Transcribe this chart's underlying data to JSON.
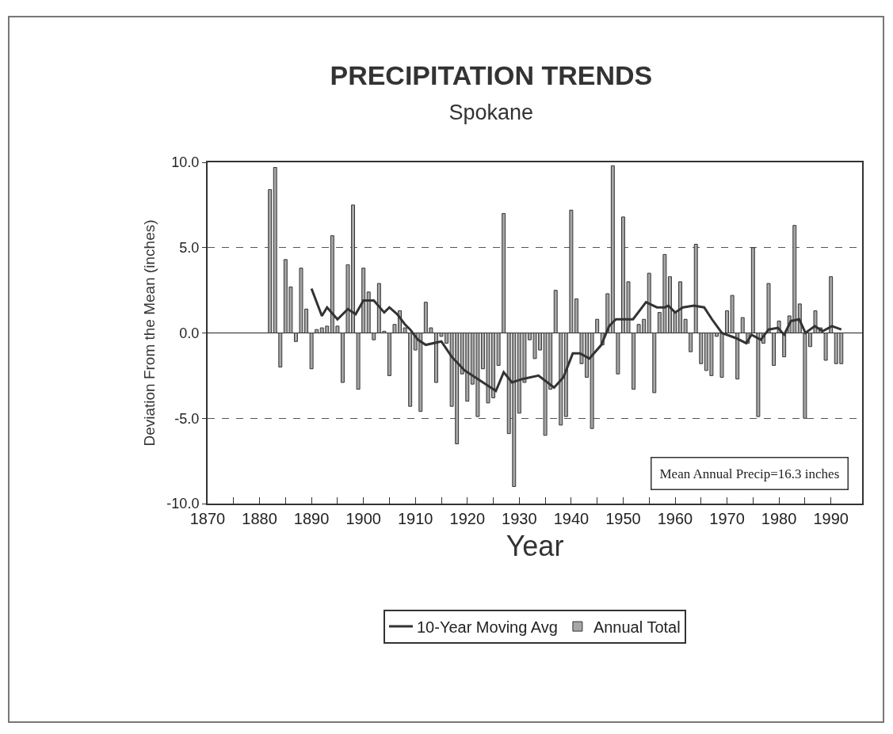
{
  "chart_data": {
    "type": "bar",
    "title": "PRECIPITATION TRENDS",
    "subtitle": "Spokane",
    "xlabel": "Year",
    "ylabel": "Deviation From the Mean (inches)",
    "xlim": [
      1870,
      1996
    ],
    "xticks": [
      1870,
      {
        "value": 1875,
        "label": null
      },
      1880,
      {
        "value": 1885,
        "label": null
      },
      1890,
      {
        "value": 1895,
        "label": null
      },
      1900,
      {
        "value": 1905,
        "label": null
      },
      1910,
      {
        "value": 1915,
        "label": null
      },
      1920,
      {
        "value": 1925,
        "label": null
      },
      1930,
      {
        "value": 1935,
        "label": null
      },
      1940,
      {
        "value": 1945,
        "label": null
      },
      1950,
      {
        "value": 1955,
        "label": null
      },
      1960,
      {
        "value": 1965,
        "label": null
      },
      1970,
      {
        "value": 1975,
        "label": null
      },
      1980,
      {
        "value": 1985,
        "label": null
      },
      1990
    ],
    "ylim": [
      -10,
      10
    ],
    "yticks": [
      {
        "value": -10,
        "label": "-10.0"
      },
      {
        "value": -5,
        "label": "-5.0"
      },
      {
        "value": 0,
        "label": "0.0"
      },
      {
        "value": 5,
        "label": "5.0"
      },
      {
        "value": 10,
        "label": "10.0"
      }
    ],
    "grid": "y",
    "legend": "bottom",
    "annotations": [
      "Mean Annual Precip=16.3 inches"
    ],
    "series": [
      {
        "name": "10-Year Moving Avg",
        "type": "line",
        "color": "#333333",
        "line_style": "solid",
        "marker": "none",
        "x": [
          1890,
          1892,
          1893,
          1895,
          1897,
          1898.5,
          1900,
          1902,
          1904,
          1905,
          1906.5,
          1908,
          1909,
          1910.5,
          1912,
          1915,
          1917,
          1919.5,
          1922.5,
          1925.5,
          1927,
          1928.6,
          1930.6,
          1933.7,
          1936.7,
          1938.5,
          1940.3,
          1941.7,
          1943.5,
          1945.8,
          1947.3,
          1948.6,
          1951.9,
          1954.4,
          1956.5,
          1958,
          1958.7,
          1960,
          1961.5,
          1963.6,
          1965.6,
          1967.1,
          1969,
          1971.7,
          1973.7,
          1974.7,
          1976.5,
          1978,
          1979.8,
          1981,
          1982.3,
          1983.9,
          1985.1,
          1986.9,
          1988.4,
          1990.2,
          1992
        ],
        "values": [
          2.6,
          1.0,
          1.5,
          0.8,
          1.4,
          1.1,
          1.9,
          1.9,
          1.2,
          1.5,
          1.1,
          0.5,
          0.2,
          -0.4,
          -0.7,
          -0.5,
          -1.4,
          -2.2,
          -2.8,
          -3.4,
          -2.3,
          -2.9,
          -2.7,
          -2.5,
          -3.2,
          -2.6,
          -1.2,
          -1.2,
          -1.5,
          -0.7,
          0.4,
          0.8,
          0.8,
          1.8,
          1.5,
          1.5,
          1.6,
          1.2,
          1.5,
          1.6,
          1.5,
          0.8,
          0.0,
          -0.3,
          -0.6,
          -0.1,
          -0.4,
          0.2,
          0.3,
          -0.1,
          0.7,
          0.8,
          0.0,
          0.4,
          0.1,
          0.4,
          0.2
        ]
      },
      {
        "name": "Annual Total",
        "color": "#a6a6a6",
        "x": [
          1882,
          1883,
          1884,
          1885,
          1886,
          1887,
          1888,
          1889,
          1890,
          1891,
          1892,
          1893,
          1894,
          1895,
          1896,
          1897,
          1898,
          1899,
          1900,
          1901,
          1902,
          1903,
          1904,
          1905,
          1906,
          1907,
          1908,
          1909,
          1910,
          1911,
          1912,
          1913,
          1914,
          1915,
          1916,
          1917,
          1918,
          1919,
          1920,
          1921,
          1922,
          1923,
          1924,
          1925,
          1926,
          1927,
          1928,
          1929,
          1930,
          1931,
          1932,
          1933,
          1934,
          1935,
          1936,
          1937,
          1938,
          1939,
          1940,
          1941,
          1942,
          1943,
          1944,
          1945,
          1946,
          1947,
          1948,
          1949,
          1950,
          1951,
          1952,
          1953,
          1954,
          1955,
          1956,
          1957,
          1958,
          1959,
          1960,
          1961,
          1962,
          1963,
          1964,
          1965,
          1966,
          1967,
          1968,
          1969,
          1970,
          1971,
          1972,
          1973,
          1974,
          1975,
          1976,
          1977,
          1978,
          1979,
          1980,
          1981,
          1982,
          1983,
          1984,
          1985,
          1986,
          1987,
          1988,
          1989,
          1990,
          1991,
          1992
        ],
        "values": [
          8.4,
          9.7,
          -2.0,
          4.3,
          2.7,
          -0.5,
          3.8,
          1.4,
          -2.1,
          0.2,
          0.3,
          0.4,
          5.7,
          0.4,
          -2.9,
          4.0,
          7.5,
          -3.3,
          3.8,
          2.4,
          -0.4,
          2.9,
          0.1,
          -2.5,
          0.5,
          1.3,
          0.3,
          -4.3,
          -1.0,
          -4.6,
          1.8,
          0.3,
          -2.9,
          -0.2,
          -0.6,
          -4.3,
          -6.5,
          -2.4,
          -4.0,
          -3.0,
          -4.9,
          -2.1,
          -4.1,
          -3.8,
          -1.9,
          7.0,
          -5.9,
          -9.0,
          -4.7,
          -2.9,
          -0.4,
          -1.5,
          -1.0,
          -6.0,
          -3.3,
          2.5,
          -5.4,
          -4.9,
          7.2,
          2.0,
          -1.8,
          -2.6,
          -5.6,
          0.8,
          -0.7,
          2.3,
          9.8,
          -2.4,
          6.8,
          3.0,
          -3.3,
          0.5,
          0.8,
          3.5,
          -3.5,
          1.2,
          4.6,
          3.3,
          1.2,
          3.0,
          0.8,
          -1.1,
          5.2,
          -1.8,
          -2.2,
          -2.5,
          -0.2,
          -2.6,
          1.3,
          2.2,
          -2.7,
          0.9,
          -0.6,
          5.0,
          -4.9,
          -0.6,
          2.9,
          -1.9,
          0.7,
          -1.4,
          1.0,
          6.3,
          1.7,
          -5.0,
          -0.8,
          1.3,
          0.3,
          -1.6,
          3.3,
          -1.8,
          -1.8
        ]
      }
    ]
  }
}
